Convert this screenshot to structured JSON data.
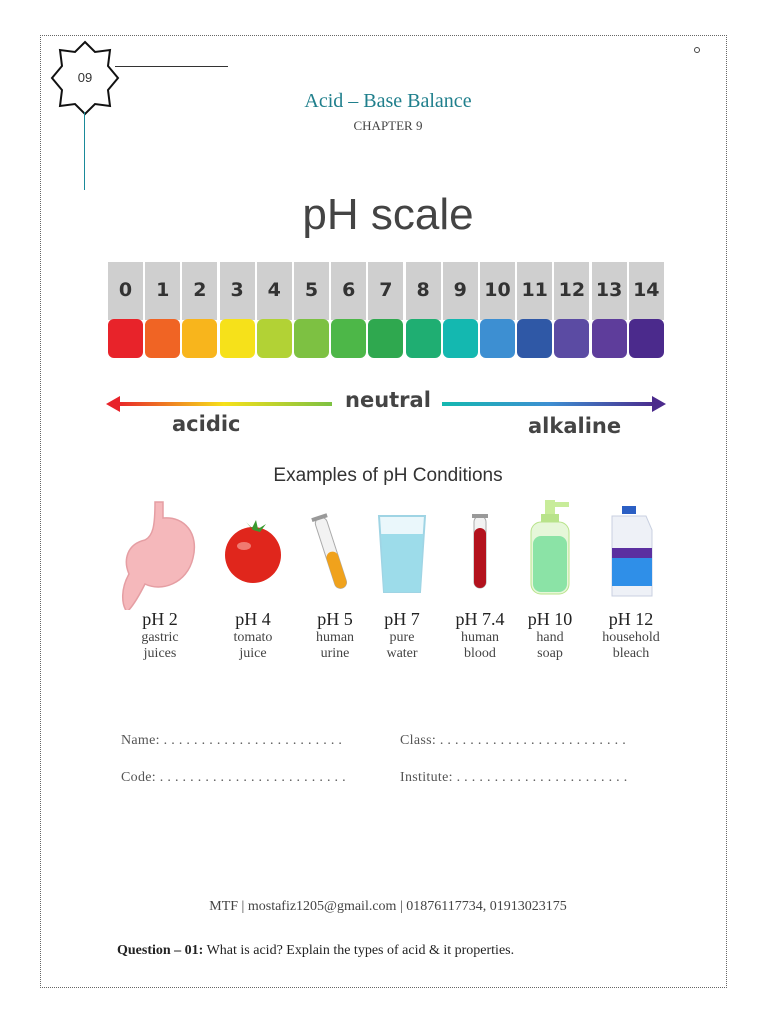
{
  "badge": {
    "number": "09"
  },
  "header": {
    "title": "Acid – Base Balance",
    "chapter": "CHAPTER 9"
  },
  "ph_scale": {
    "title": "pH scale",
    "levels": [
      {
        "label": "0",
        "color": "#e8232a"
      },
      {
        "label": "1",
        "color": "#f06424"
      },
      {
        "label": "2",
        "color": "#f8b51c"
      },
      {
        "label": "3",
        "color": "#f6e11a"
      },
      {
        "label": "4",
        "color": "#b2d235"
      },
      {
        "label": "5",
        "color": "#7dc142"
      },
      {
        "label": "6",
        "color": "#4db748"
      },
      {
        "label": "7",
        "color": "#2fa84f"
      },
      {
        "label": "8",
        "color": "#1fae72"
      },
      {
        "label": "9",
        "color": "#14b8b0"
      },
      {
        "label": "10",
        "color": "#3d8fd2"
      },
      {
        "label": "11",
        "color": "#2f58a6"
      },
      {
        "label": "12",
        "color": "#5b4ba3"
      },
      {
        "label": "13",
        "color": "#5e3d9b"
      },
      {
        "label": "14",
        "color": "#4b2a8c"
      }
    ],
    "acidic_label": "acidic",
    "neutral_label": "neutral",
    "alkaline_label": "alkaline"
  },
  "examples": {
    "title": "Examples of pH Conditions",
    "items": [
      {
        "ph": "pH 2",
        "desc1": "gastric",
        "desc2": "juices",
        "icon": "stomach-icon"
      },
      {
        "ph": "pH 4",
        "desc1": "tomato",
        "desc2": "juice",
        "icon": "tomato-icon"
      },
      {
        "ph": "pH 5",
        "desc1": "human",
        "desc2": "urine",
        "icon": "test-tube-icon"
      },
      {
        "ph": "pH 7",
        "desc1": "pure",
        "desc2": "water",
        "icon": "water-glass-icon"
      },
      {
        "ph": "pH 7.4",
        "desc1": "human",
        "desc2": "blood",
        "icon": "blood-tube-icon"
      },
      {
        "ph": "pH 10",
        "desc1": "hand",
        "desc2": "soap",
        "icon": "soap-dispenser-icon"
      },
      {
        "ph": "pH 12",
        "desc1": "household",
        "desc2": "bleach",
        "icon": "bleach-bottle-icon"
      }
    ]
  },
  "form": {
    "name": "Name: . . . . . . . . . . . . . . . . . . . . . . . .",
    "class": "Class: . . . . . . . . . . . . . . . . . . . . . . . . .",
    "code": "Code: . . . . . . . . . . . . . . . . . . . . . . . . .",
    "institute": "Institute: . . . . . . . . . . . . . . . . . . . . . . ."
  },
  "footer": "MTF | mostafiz1205@gmail.com | 01876117734, 01913023175",
  "question": {
    "label": "Question – 01:",
    "text": " What is acid? Explain the types of acid & it properties."
  }
}
